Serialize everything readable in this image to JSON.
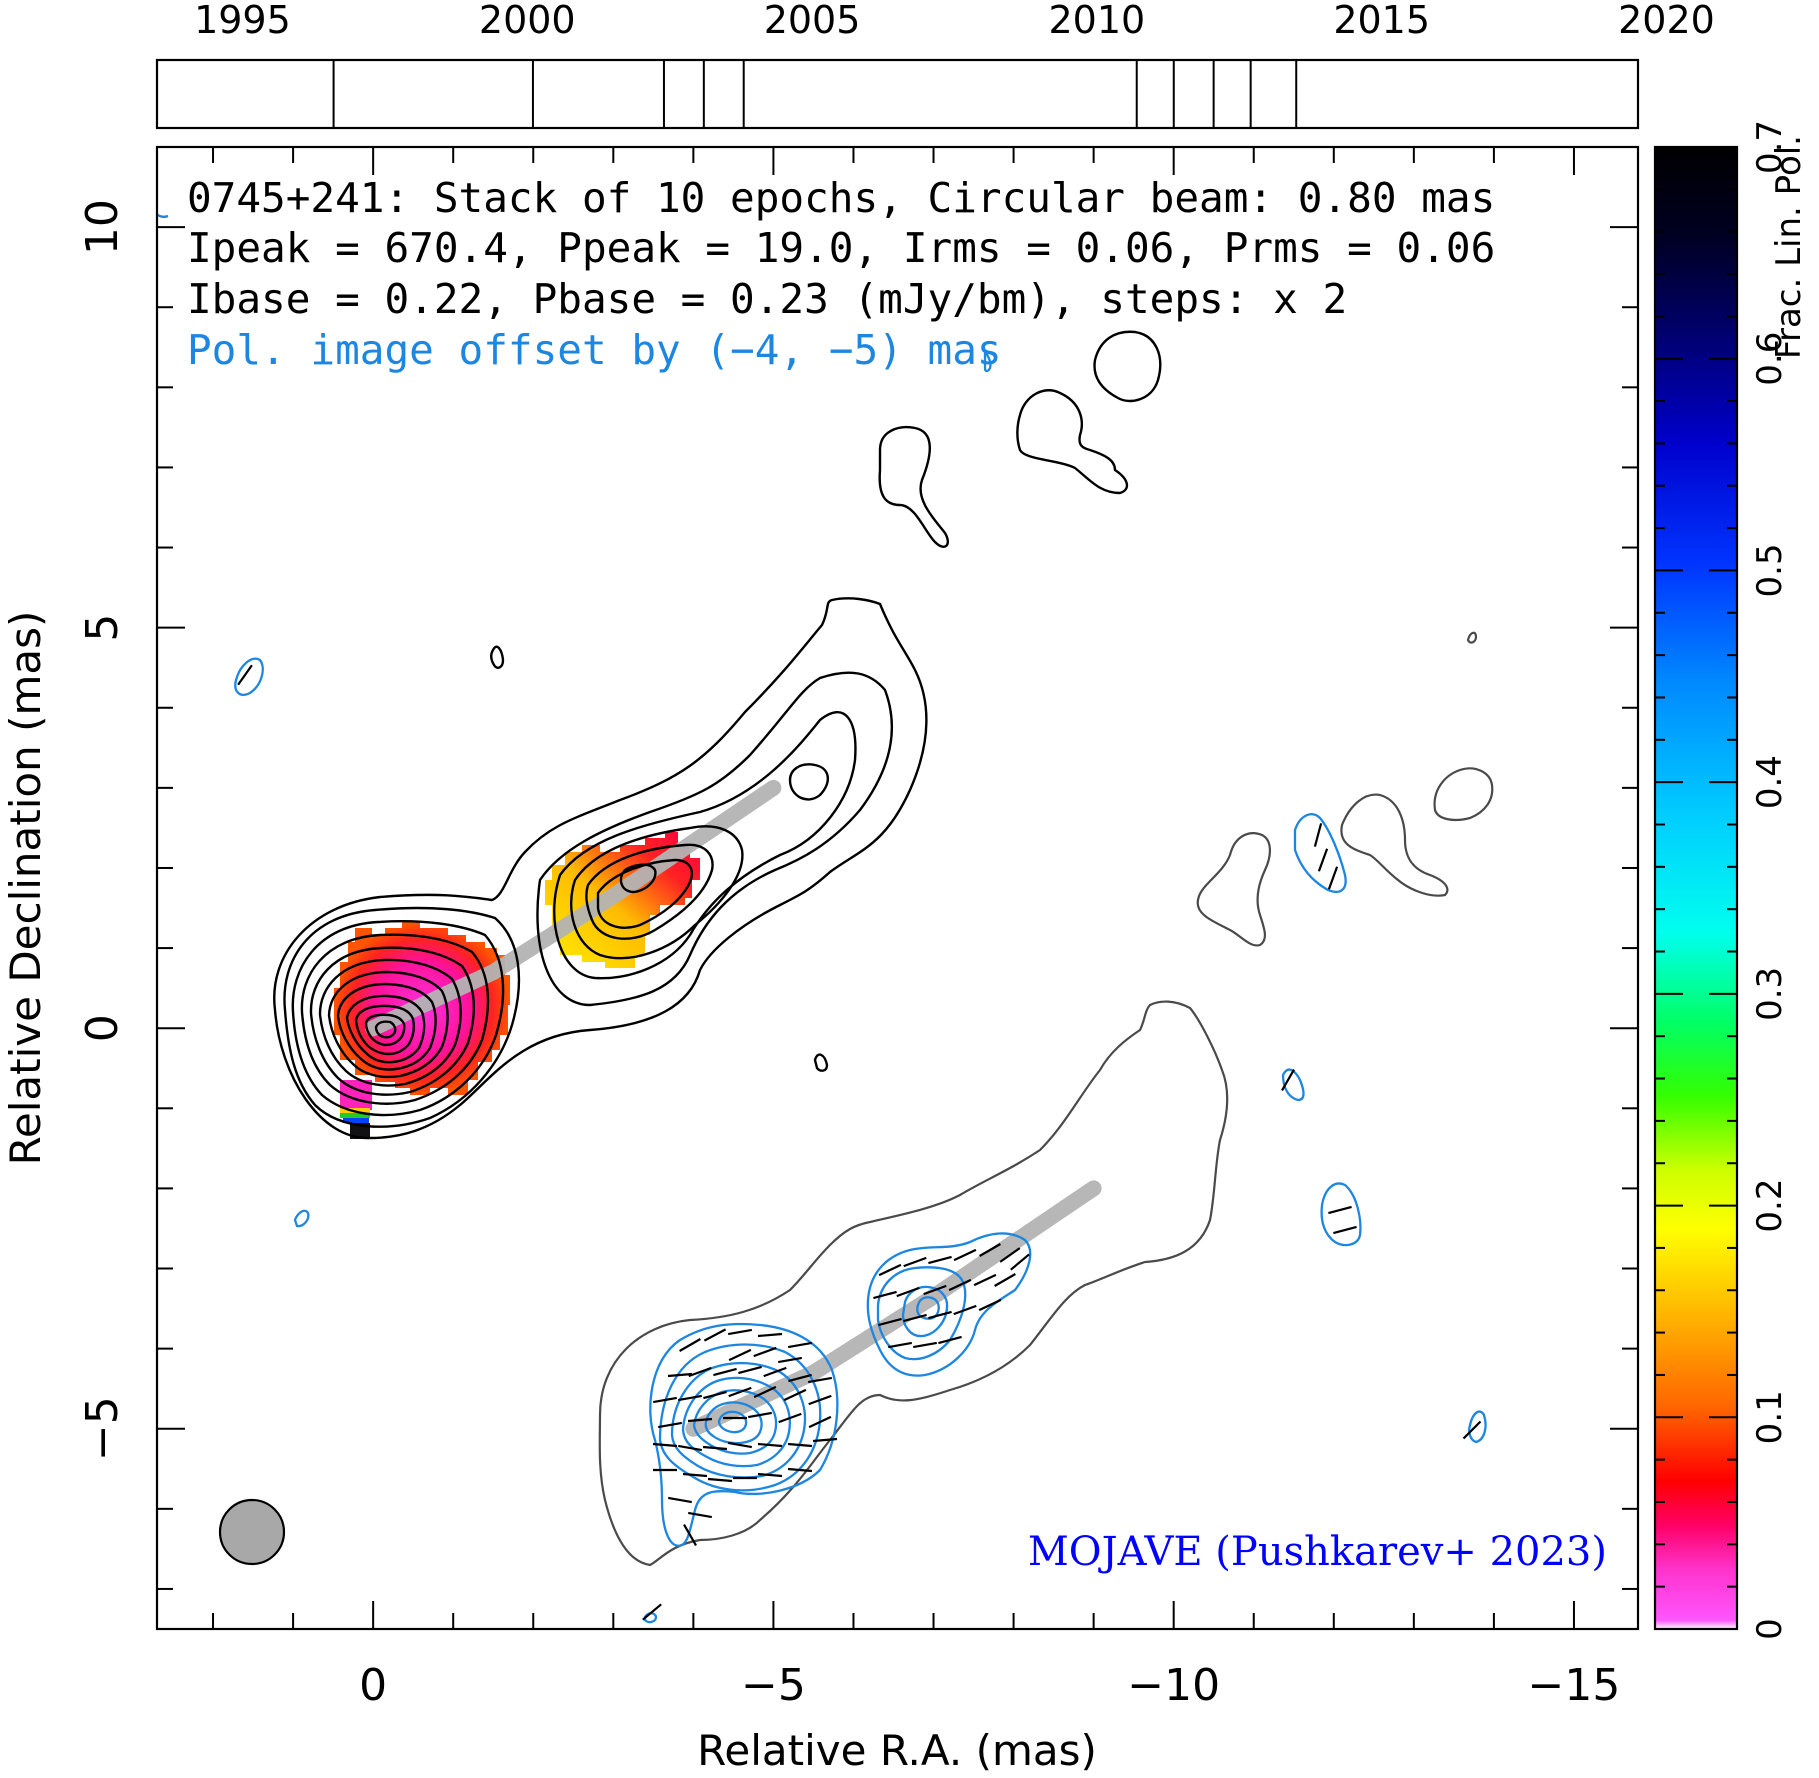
{
  "chart_data": {
    "type": "contour_map",
    "header": {
      "line1": "0745+241: Stack of 10 epochs, Circular beam: 0.80 mas",
      "line2": "Ipeak = 670.4, Ppeak = 19.0, Irms = 0.06, Prms = 0.06",
      "line3": "Ibase = 0.22, Pbase = 0.23 (mJy/bm), steps: x 2",
      "line4": "Pol. image offset by (−4, −5) mas"
    },
    "xlabel": "Relative R.A. (mas)",
    "ylabel": "Relative Declination (mas)",
    "xlim": [
      2.7,
      -15.8
    ],
    "ylim": [
      -7.5,
      11
    ],
    "x_ticks": [
      {
        "value": 0,
        "label": "0"
      },
      {
        "value": -5,
        "label": "−5"
      },
      {
        "value": -10,
        "label": "−10"
      },
      {
        "value": -15,
        "label": "−15"
      }
    ],
    "y_ticks": [
      {
        "value": 10,
        "label": "10"
      },
      {
        "value": 5,
        "label": "5"
      },
      {
        "value": 0,
        "label": "0"
      },
      {
        "value": -5,
        "label": "−5"
      }
    ],
    "epoch_timeline": {
      "year_labels": [
        "1995",
        "2000",
        "2005",
        "2010",
        "2015",
        "2020"
      ],
      "year_range": [
        1993.5,
        2019.5
      ],
      "epochs": [
        1996.6,
        2000.1,
        2002.4,
        2003.1,
        2003.8,
        2010.7,
        2011.35,
        2012.05,
        2012.7,
        2013.5
      ]
    },
    "colorbar": {
      "label": "Frac. Lin. Pol.",
      "range": [
        0,
        0.7
      ],
      "ticks": [
        "0",
        "0.1",
        "0.2",
        "0.3",
        "0.4",
        "0.5",
        "0.6",
        "0.7"
      ]
    },
    "beam": {
      "diameter_mas": 0.8,
      "position": "bottom-left"
    },
    "jet_ridge": [
      [
        0.0,
        0.0
      ],
      [
        -1.5,
        0.7
      ],
      [
        -3.0,
        1.65
      ],
      [
        -5.0,
        3.0
      ]
    ],
    "pol_ridge": [
      [
        -4.0,
        -5.0
      ],
      [
        -5.5,
        -4.3
      ],
      [
        -7.0,
        -3.35
      ],
      [
        -9.0,
        -2.0
      ]
    ],
    "credit": "MOJAVE (Pushkarev+ 2023)",
    "colors": {
      "stokes_i_contours": "#000000",
      "pol_contours": "#1c86e0",
      "pol_total_intensity": "#4a4a4a",
      "ridge": "#b3b3b3",
      "beam": "#a8a8a8",
      "credit": "#0000ff",
      "offset_note": "#1c86e0"
    }
  }
}
